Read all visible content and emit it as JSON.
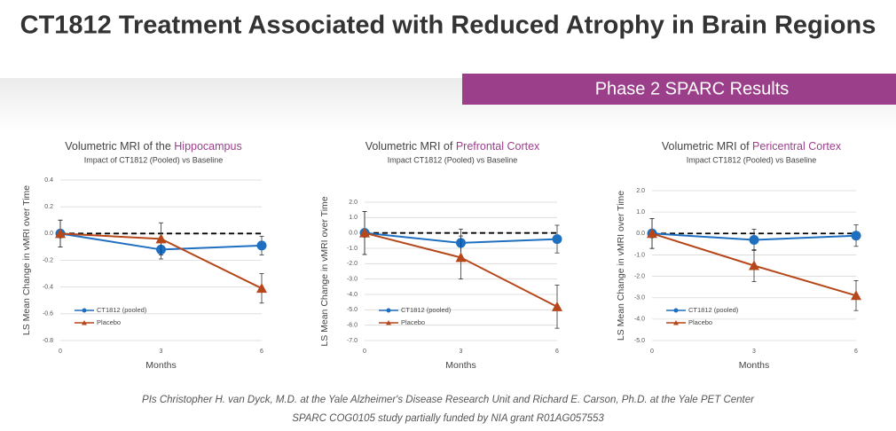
{
  "header": {
    "title": "CT1812 Treatment Associated with Reduced Atrophy in Brain Regions",
    "banner": "Phase 2 SPARC Results"
  },
  "footer": {
    "line1": "PIs Christopher H. van Dyck, M.D. at the Yale Alzheimer's Disease Research Unit and Richard E. Carson, Ph.D. at the Yale PET Center",
    "line2": "SPARC COG0105 study partially funded by NIA grant R01AG057553"
  },
  "chart_data": [
    {
      "type": "line",
      "title": "Volumetric MRI of the",
      "title_highlight": "Hippocampus",
      "subtitle": "Impact of CT1812 (Pooled) vs Baseline",
      "y_label": "LS Mean Change in vMRI over Time",
      "x_label": "Months",
      "x": [
        0,
        3,
        6
      ],
      "xlim": [
        0,
        6
      ],
      "xticks": [
        0,
        3,
        6
      ],
      "ylim": [
        -0.8,
        0.4
      ],
      "yticks": [
        {
          "value": -0.8,
          "label": "-0.8"
        },
        -0.6,
        -0.4,
        -0.2,
        {
          "value": 0,
          "label": "0.0"
        },
        0.2,
        0.4
      ],
      "grid": true,
      "baseline": 0,
      "series": [
        {
          "name": "CT1812 (pooled)",
          "color": "#1f6fc1",
          "marker": "circle",
          "values": [
            0,
            -0.12,
            -0.09
          ],
          "errors": [
            0.1,
            0.07,
            0.07
          ]
        },
        {
          "name": "Placebo",
          "color": "#b5471a",
          "marker": "triangle",
          "values": [
            0,
            -0.04,
            -0.41
          ],
          "errors": [
            0.1,
            0.12,
            0.11
          ]
        }
      ]
    },
    {
      "type": "line",
      "title": "Volumetric MRI of",
      "title_highlight": "Prefrontal Cortex",
      "subtitle": "Impact CT1812 (Pooled) vs Baseline",
      "y_label": "LS Mean Change in vMRI over Time",
      "x_label": "Months",
      "x": [
        0,
        3,
        6
      ],
      "xlim": [
        0,
        6
      ],
      "xticks": [
        0,
        3,
        6
      ],
      "ylim": [
        -7,
        2
      ],
      "yticks": [
        {
          "value": -7,
          "label": "-7.0"
        },
        {
          "value": -6,
          "label": "-6.0"
        },
        {
          "value": -5,
          "label": "-5.0"
        },
        {
          "value": -4,
          "label": "-4.0"
        },
        {
          "value": -3,
          "label": "-3.0"
        },
        {
          "value": -2,
          "label": "-2.0"
        },
        {
          "value": -1,
          "label": "-1.0"
        },
        {
          "value": 0,
          "label": "0.0"
        },
        {
          "value": 1,
          "label": "1.0"
        },
        {
          "value": 2,
          "label": "2.0"
        }
      ],
      "grid": true,
      "baseline": 0,
      "series": [
        {
          "name": "CT1812 (pooled)",
          "color": "#1f6fc1",
          "marker": "circle",
          "values": [
            0,
            -0.65,
            -0.4
          ],
          "errors": [
            1.4,
            0.9,
            0.9
          ]
        },
        {
          "name": "Placebo",
          "color": "#b5471a",
          "marker": "triangle",
          "values": [
            0,
            -1.6,
            -4.8
          ],
          "errors": [
            1.4,
            1.4,
            1.4
          ]
        }
      ]
    },
    {
      "type": "line",
      "title": "Volumetric MRI of",
      "title_highlight": "Pericentral Cortex",
      "subtitle": "Impact CT1812 (Pooled) vs Baseline",
      "y_label": "LS Mean Change in vMRI over Time",
      "x_label": "Months",
      "x": [
        0,
        3,
        6
      ],
      "xlim": [
        0,
        6
      ],
      "xticks": [
        0,
        3,
        6
      ],
      "ylim": [
        -5,
        2
      ],
      "yticks": [
        {
          "value": -5,
          "label": "-5.0"
        },
        {
          "value": -4,
          "label": "-4.0"
        },
        {
          "value": -3,
          "label": "-3.0"
        },
        {
          "value": -2,
          "label": "-2.0"
        },
        {
          "value": -1,
          "label": "-1.0"
        },
        {
          "value": 0,
          "label": "0.0"
        },
        {
          "value": 1,
          "label": "1.0"
        },
        {
          "value": 2,
          "label": "2.0"
        }
      ],
      "grid": true,
      "baseline": 0,
      "series": [
        {
          "name": "CT1812 (pooled)",
          "color": "#1f6fc1",
          "marker": "circle",
          "values": [
            0,
            -0.3,
            -0.1
          ],
          "errors": [
            0.7,
            0.5,
            0.5
          ]
        },
        {
          "name": "Placebo",
          "color": "#b5471a",
          "marker": "triangle",
          "values": [
            0,
            -1.5,
            -2.9
          ],
          "errors": [
            0.7,
            0.75,
            0.7
          ]
        }
      ]
    }
  ]
}
